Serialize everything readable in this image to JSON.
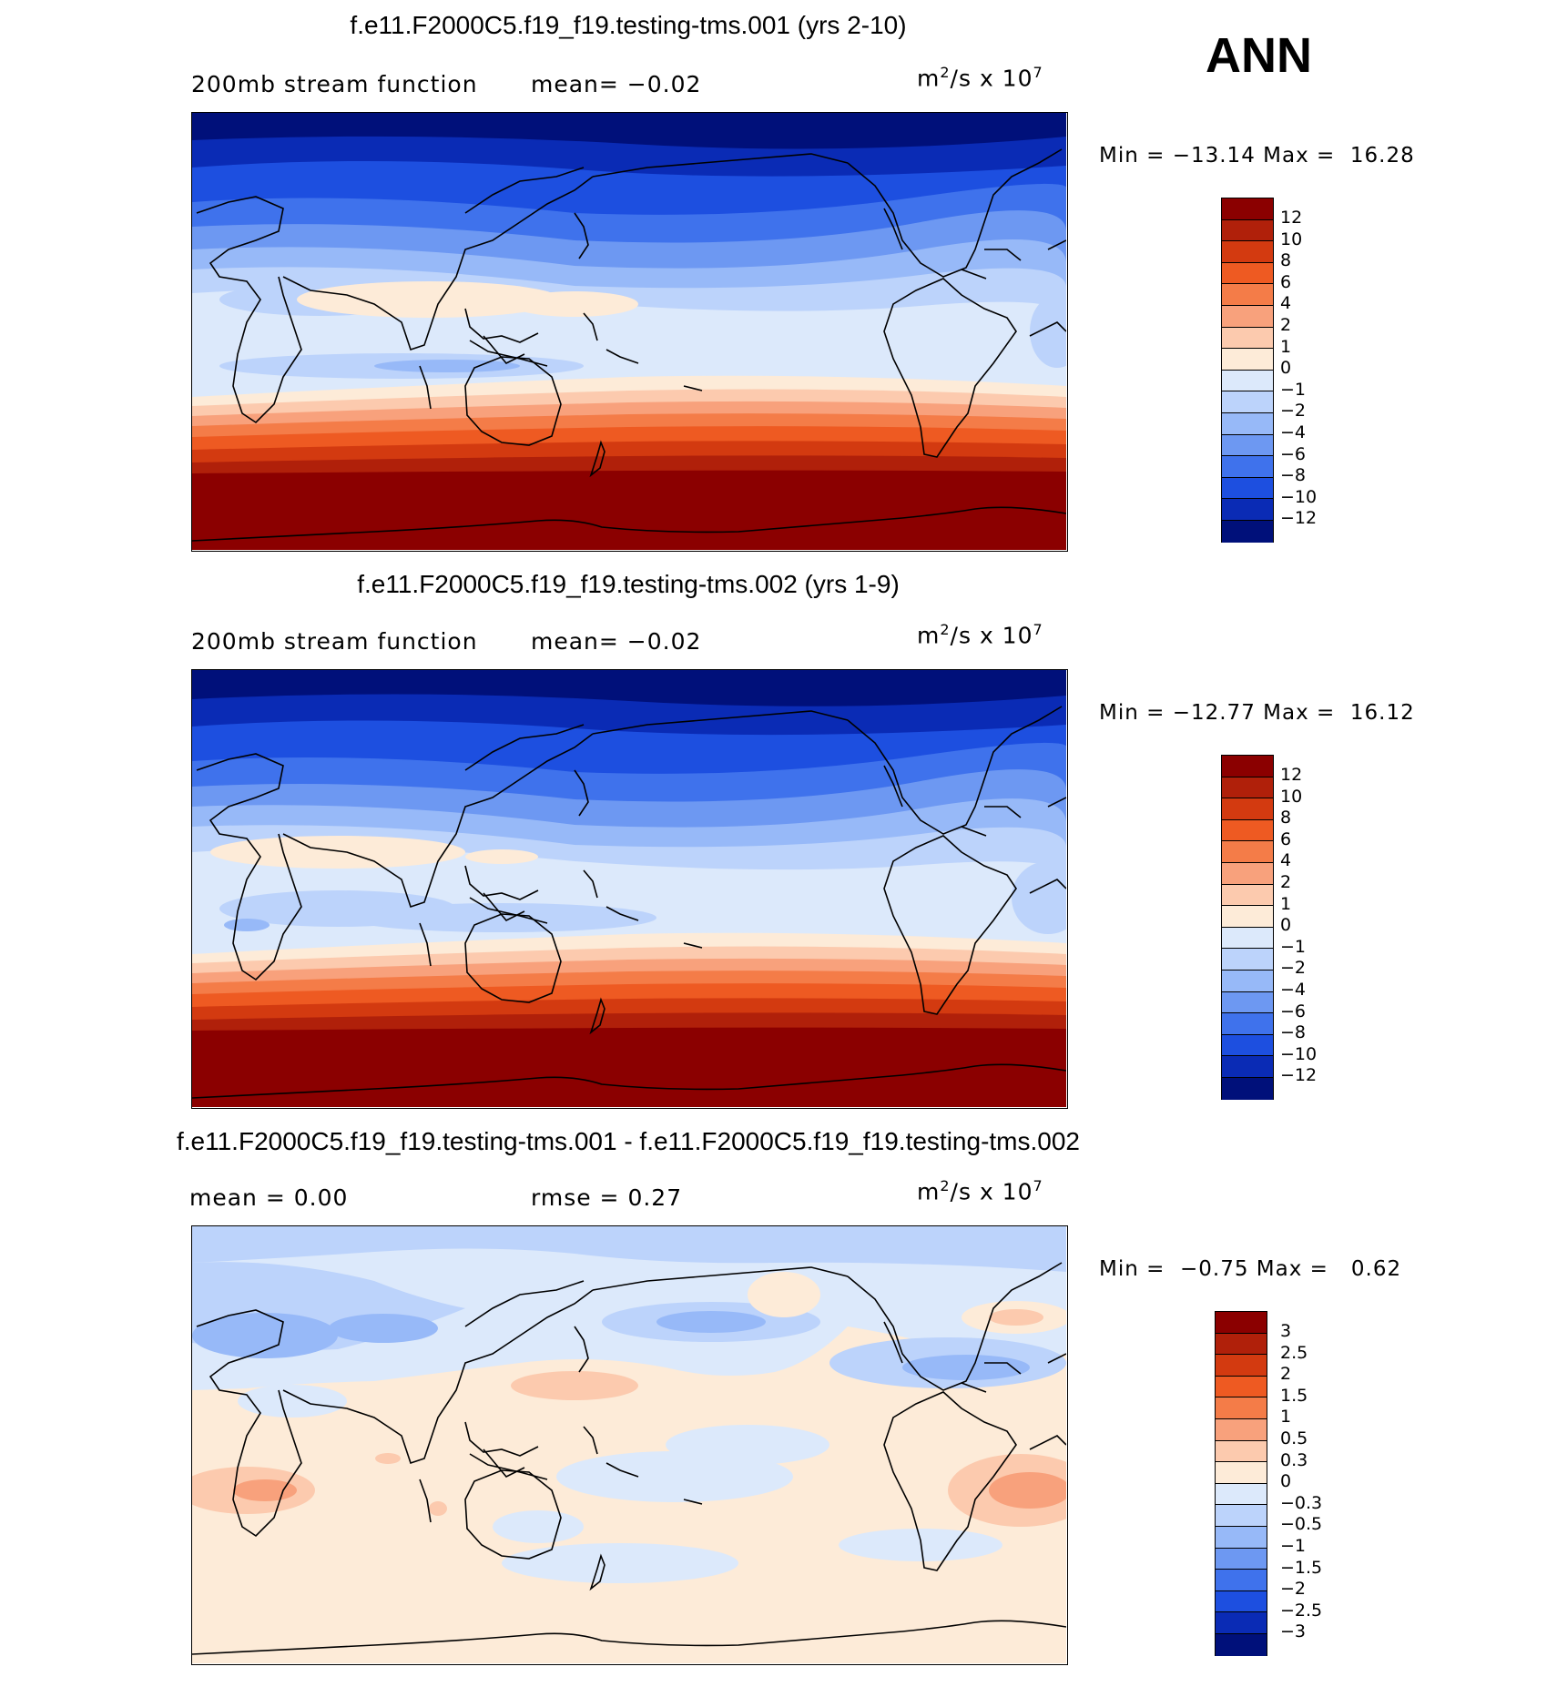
{
  "season": "ANN",
  "panels": [
    {
      "id": "p1",
      "title": "f.e11.F2000C5.f19_f19.testing-tms.001 (yrs 2-10)",
      "left_text": "200mb stream function",
      "right_text": "mean=  −0.02",
      "units_base": "m",
      "units_exp1": "2",
      "units_mid": "/s x 10",
      "units_exp2": "7",
      "minmax": "Min = −13.14 Max =  16.28",
      "colorbar": [
        "12",
        "10",
        "8",
        "6",
        "4",
        "2",
        "1",
        "0",
        "−1",
        "−2",
        "−4",
        "−6",
        "−8",
        "−10",
        "−12"
      ],
      "colors": [
        "#8b0000",
        "#b0200a",
        "#d33a10",
        "#ee5a22",
        "#f47c48",
        "#f8a17c",
        "#fccaae",
        "#fdebd8",
        "#dce9fb",
        "#bcd3fb",
        "#97b9f8",
        "#6d98f2",
        "#3f72ec",
        "#1d4fe0",
        "#0a2bb5",
        "#00107a"
      ]
    },
    {
      "id": "p2",
      "title": "f.e11.F2000C5.f19_f19.testing-tms.002 (yrs 1-9)",
      "left_text": "200mb stream function",
      "right_text": "mean=  −0.02",
      "units_base": "m",
      "units_exp1": "2",
      "units_mid": "/s x 10",
      "units_exp2": "7",
      "minmax": "Min = −12.77 Max =  16.12",
      "colorbar": [
        "12",
        "10",
        "8",
        "6",
        "4",
        "2",
        "1",
        "0",
        "−1",
        "−2",
        "−4",
        "−6",
        "−8",
        "−10",
        "−12"
      ],
      "colors": [
        "#8b0000",
        "#b0200a",
        "#d33a10",
        "#ee5a22",
        "#f47c48",
        "#f8a17c",
        "#fccaae",
        "#fdebd8",
        "#dce9fb",
        "#bcd3fb",
        "#97b9f8",
        "#6d98f2",
        "#3f72ec",
        "#1d4fe0",
        "#0a2bb5",
        "#00107a"
      ]
    },
    {
      "id": "p3",
      "title": "f.e11.F2000C5.f19_f19.testing-tms.001 - f.e11.F2000C5.f19_f19.testing-tms.002",
      "left_text": "mean =    0.00",
      "right_text": "rmse =    0.27",
      "units_base": "m",
      "units_exp1": "2",
      "units_mid": "/s x 10",
      "units_exp2": "7",
      "minmax": "Min =  −0.75 Max =   0.62",
      "colorbar": [
        "3",
        "2.5",
        "2",
        "1.5",
        "1",
        "0.5",
        "0.3",
        "0",
        "−0.3",
        "−0.5",
        "−1",
        "−1.5",
        "−2",
        "−2.5",
        "−3"
      ],
      "colors": [
        "#8b0000",
        "#b0200a",
        "#d33a10",
        "#ee5a22",
        "#f47c48",
        "#f8a17c",
        "#fccaae",
        "#fdebd8",
        "#dce9fb",
        "#bcd3fb",
        "#97b9f8",
        "#6d98f2",
        "#3f72ec",
        "#1d4fe0",
        "#0a2bb5",
        "#00107a"
      ]
    }
  ]
}
